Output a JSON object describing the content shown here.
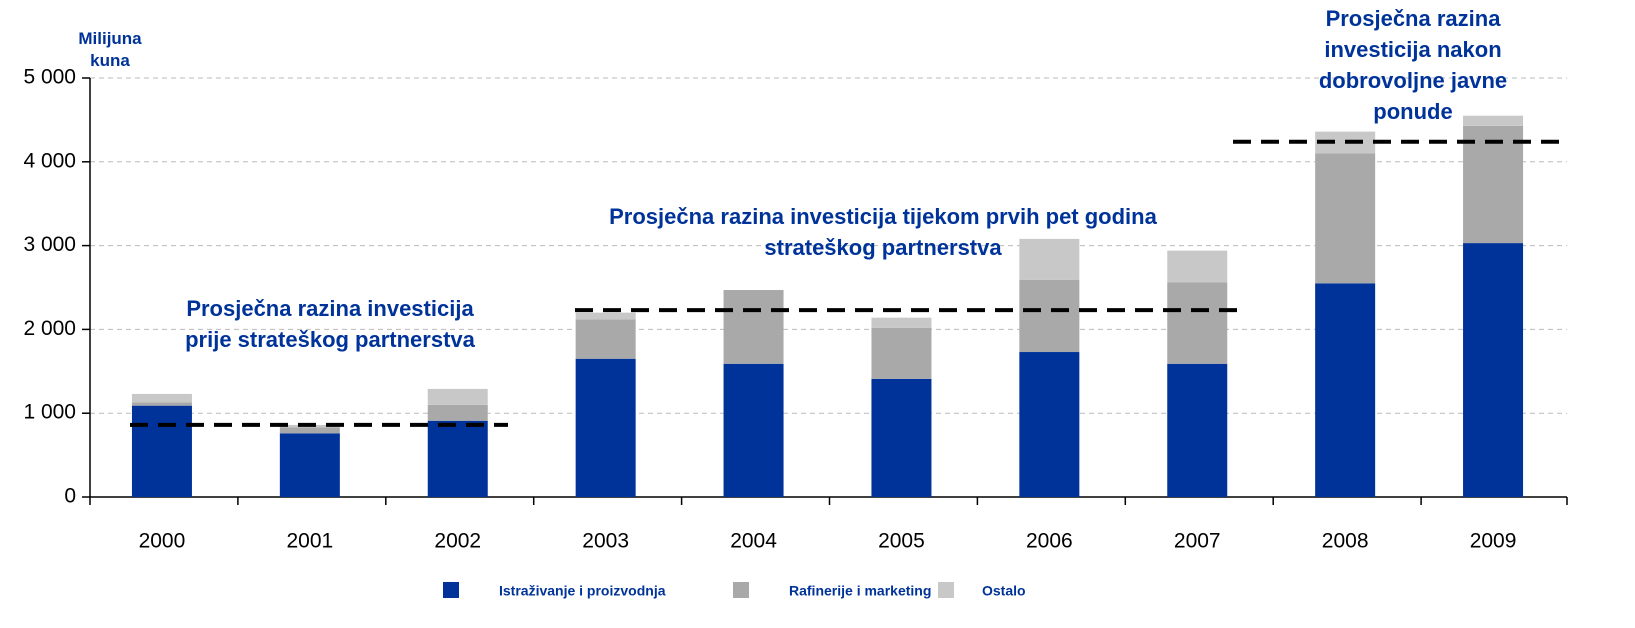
{
  "chart_data": {
    "type": "stacked_bar",
    "y_label": "Milijuna kuna",
    "categories": [
      "2000",
      "2001",
      "2002",
      "2003",
      "2004",
      "2005",
      "2006",
      "2007",
      "2008",
      "2009"
    ],
    "series": [
      {
        "name": "Istraživanje i proizvodnja",
        "color": "#003399",
        "values": [
          1090,
          760,
          910,
          1650,
          1590,
          1410,
          1730,
          1590,
          2550,
          3030
        ]
      },
      {
        "name": "Rafinerije i marketing",
        "color": "#a9a9a9",
        "values": [
          40,
          70,
          190,
          470,
          880,
          610,
          860,
          970,
          1550,
          1400
        ]
      },
      {
        "name": "Ostalo",
        "color": "#c8c8c8",
        "values": [
          100,
          30,
          190,
          80,
          0,
          120,
          490,
          380,
          260,
          120
        ]
      }
    ],
    "ylim": [
      0,
      5000
    ],
    "yticks": [
      0,
      {
        "value": 1000,
        "label": "1 000"
      },
      {
        "value": 2000,
        "label": "2 000"
      },
      {
        "value": 3000,
        "label": "3 000"
      },
      {
        "value": 4000,
        "label": "4 000"
      },
      {
        "value": 5000,
        "label": "5 000"
      }
    ],
    "grid": true,
    "reference_lines": [
      {
        "value": 860,
        "start": "2000",
        "end": "2002",
        "text": [
          "Prosječna razina investicija",
          "prije strateškog partnerstva"
        ]
      },
      {
        "value": 2230,
        "start": "2003",
        "end": "2007",
        "text": [
          "Prosječna razina investicija tijekom prvih pet godina",
          "strateškog partnerstva"
        ]
      },
      {
        "value": 4240,
        "start": "2008",
        "end": "2009",
        "text": [
          "Prosječna razina",
          "investicija nakon",
          "dobrovoljne javne",
          "ponude"
        ]
      }
    ]
  }
}
